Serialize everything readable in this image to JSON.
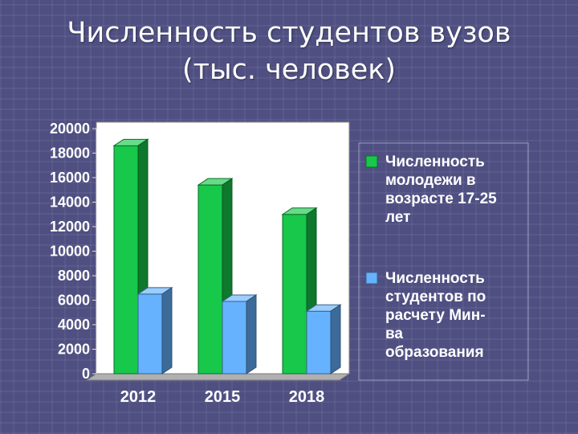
{
  "slide": {
    "title_line1": "Численность студентов вузов",
    "title_line2": "(тыс. человек)"
  },
  "chart_data": {
    "type": "bar",
    "categories": [
      "2012",
      "2015",
      "2018"
    ],
    "series": [
      {
        "name_lines": [
          "Численность",
          "молодежи в",
          "возрасте 17-25",
          "лет"
        ],
        "values": [
          18600,
          15400,
          13000
        ],
        "color": "#17c84a"
      },
      {
        "name_lines": [
          "Численность",
          "студентов по",
          "расчету Мин-",
          "ва",
          "образования"
        ],
        "values": [
          6500,
          5900,
          5100
        ],
        "color": "#66b2ff"
      }
    ],
    "ylim": [
      0,
      20000
    ],
    "yticks": [
      0,
      2000,
      4000,
      6000,
      8000,
      10000,
      12000,
      14000,
      16000,
      18000,
      20000
    ],
    "gridlines": false,
    "legend_position": "right",
    "colors": {
      "plot_background": "#ffffff",
      "floor": "#b0b0b0"
    }
  }
}
